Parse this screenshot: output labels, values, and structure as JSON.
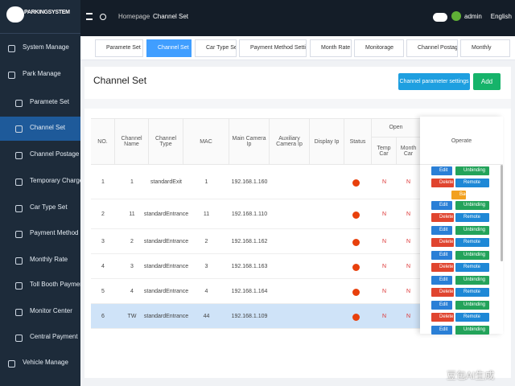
{
  "logo": "PARKINGSYSTEM",
  "sidebar": {
    "items": [
      "System Manage",
      "Park Manage"
    ],
    "sub_items": [
      "Paramete Set",
      "Channel Set",
      "Channel Postage",
      "Temporary Charge",
      "Car Type Set",
      "Payment Method Set",
      "Monthly Rate",
      "Toll Booth Payment",
      "Monitor Center",
      "Central Payment"
    ],
    "bottom_item": "Vehicle Manage"
  },
  "header": {
    "breadcrumb": [
      "Homepage",
      "Channel Set"
    ],
    "language": "English",
    "user": "admin"
  },
  "tabs": [
    "Paramete Set",
    "Channel Set",
    "Car Type Set",
    "Payment Method Settings",
    "Month Rate",
    "Monitorage",
    "Channel Postage",
    "Monthly"
  ],
  "page": {
    "title": "Channel Set",
    "buttons": [
      "Channel parameter settings",
      "Add"
    ]
  },
  "table": {
    "headers": [
      "NO.",
      "Channel Name",
      "Channel Type",
      "MAC",
      "Main Camera Ip",
      "Auxiliary Camera Ip",
      "Display Ip",
      "Status",
      "Open",
      "Temp Car",
      "Month Car"
    ],
    "operate_header": "Operate",
    "operate_buttons": [
      "Edit",
      "Unbinding",
      "Delete",
      "Remote"
    ],
    "extra_button": "Bac",
    "rows": [
      [
        "1",
        "1",
        "standardExit",
        "1",
        "192.168.1.160",
        "N",
        "N"
      ],
      [
        "2",
        "11",
        "standardEntrance",
        "11",
        "192.168.1.110",
        "N",
        "N"
      ],
      [
        "3",
        "2",
        "standardEntrance",
        "2",
        "192.168.1.162",
        "N",
        "N"
      ],
      [
        "4",
        "3",
        "standardEntrance",
        "3",
        "192.168.1.163",
        "N",
        "N"
      ],
      [
        "5",
        "4",
        "standardEntrance",
        "4",
        "192.168.1.164",
        "N",
        "N"
      ],
      [
        "6",
        "TW",
        "standardEntrance",
        "44",
        "192.168.1.109",
        "N",
        "N"
      ]
    ]
  },
  "watermark": "豆包AI生成"
}
